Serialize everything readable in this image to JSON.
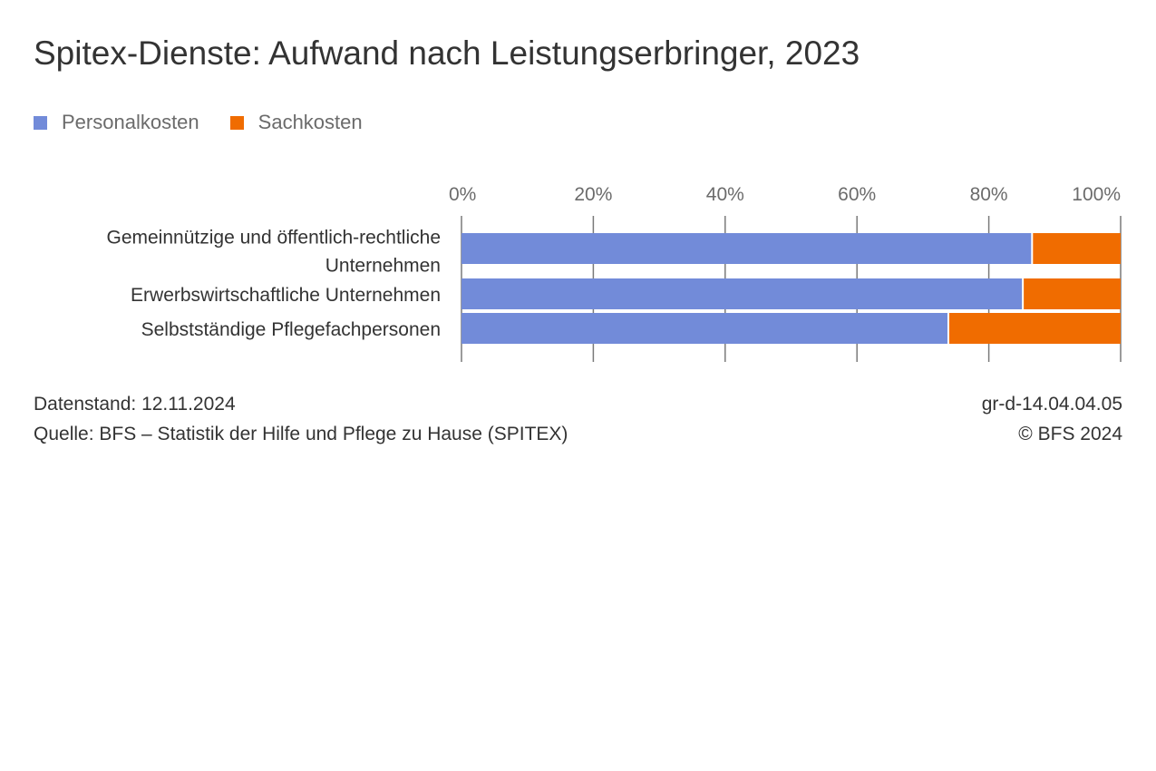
{
  "title": "Spitex-Dienste: Aufwand nach Leistungserbringer, 2023",
  "chart_data": {
    "type": "bar",
    "orientation": "horizontal",
    "stacked": true,
    "title": "Spitex-Dienste: Aufwand nach Leistungserbringer, 2023",
    "categories": [
      [
        "Gemeinnützige und öffentlich-rechtliche",
        "Unternehmen"
      ],
      [
        "Erwerbswirtschaftliche Unternehmen"
      ],
      [
        "Selbstständige Pflegefachpersonen"
      ]
    ],
    "series": [
      {
        "name": "Personalkosten",
        "color": "#728bd9",
        "values": [
          86.7,
          85.3,
          74.0
        ]
      },
      {
        "name": "Sachkosten",
        "color": "#f06c00",
        "values": [
          13.3,
          14.7,
          26.0
        ]
      }
    ],
    "xlim": [
      0,
      100
    ],
    "ticks": [
      "0%",
      "20%",
      "40%",
      "60%",
      "80%",
      "100%"
    ],
    "tick_values": [
      0,
      20,
      40,
      60,
      80,
      100
    ],
    "grid": true,
    "legend_position": "top-left"
  },
  "footer": {
    "date": "Datenstand: 12.11.2024",
    "source": "Quelle: BFS – Statistik der Hilfe und Pflege zu Hause (SPITEX)",
    "code": "gr-d-14.04.04.05",
    "copyright": "© BFS 2024"
  }
}
